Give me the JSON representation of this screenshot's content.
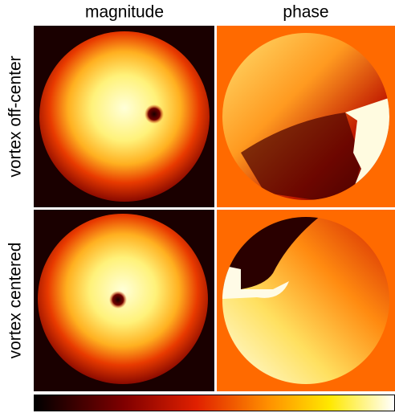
{
  "columns": [
    "magnitude",
    "phase"
  ],
  "rows": [
    "vortex off-center",
    "vortex centered"
  ]
}
